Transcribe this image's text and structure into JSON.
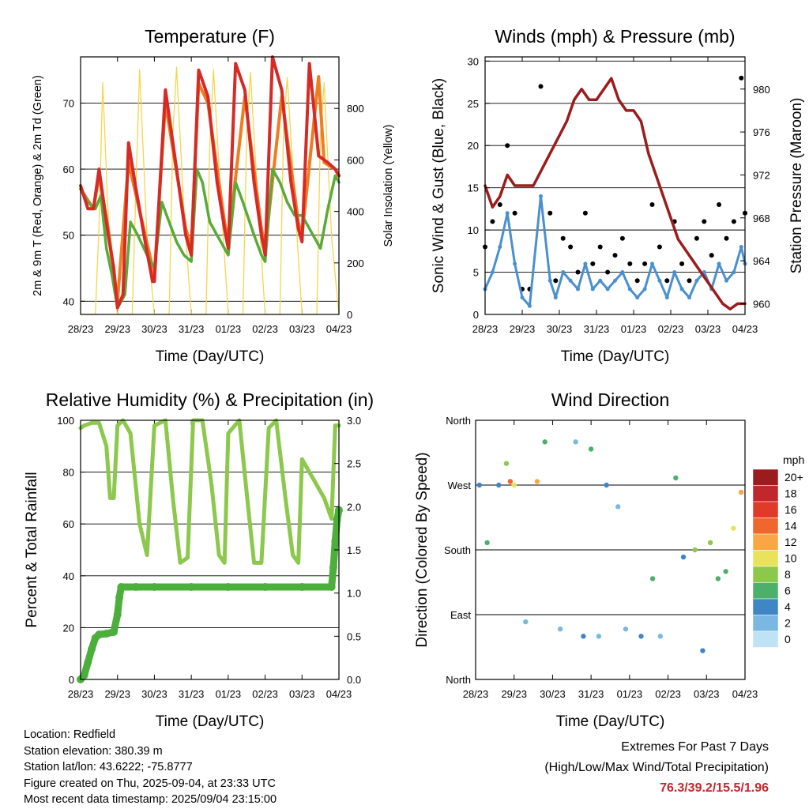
{
  "chart_data": [
    {
      "type": "line",
      "title": "Temperature (F)",
      "xlabel": "Time (Day/UTC)",
      "ylabel": "2m & 9m T (Red, Orange) & 2m Td (Green)",
      "ylabel_right": "Solar Insolation (Yellow)",
      "x_ticks": [
        "28/23",
        "29/23",
        "30/23",
        "31/23",
        "01/23",
        "02/23",
        "03/23",
        "04/23"
      ],
      "ylim": [
        38,
        77
      ],
      "y_ticks": [
        40,
        50,
        60,
        70
      ],
      "ylim_right": [
        0,
        1000
      ],
      "y_ticks_right": [
        0,
        200,
        400,
        600,
        800
      ],
      "grid": "horizontal",
      "colors": {
        "t2m": "#d62a26",
        "t9m": "#f07c1e",
        "td": "#5aaa3a",
        "solar": "#f5d54a"
      },
      "series": [
        {
          "key": "t2m",
          "x": [
            0,
            0.2,
            0.35,
            0.5,
            0.75,
            0.9,
            1.0,
            1.15,
            1.3,
            1.5,
            1.75,
            1.95,
            2.0,
            2.3,
            2.6,
            2.85,
            3.0,
            3.2,
            3.45,
            3.7,
            3.9,
            4.0,
            4.2,
            4.45,
            4.7,
            4.9,
            5.0,
            5.2,
            5.45,
            5.7,
            5.9,
            6.0,
            6.2,
            6.45,
            6.7,
            6.9,
            7.0
          ],
          "y": [
            57.5,
            54,
            54,
            60,
            50,
            45,
            39,
            41,
            64,
            57,
            49,
            43,
            43,
            72,
            60,
            50,
            47,
            75,
            71,
            58,
            51,
            48,
            76,
            72,
            58,
            50,
            47,
            77,
            72,
            58,
            51,
            49,
            76,
            62,
            61,
            60,
            59
          ]
        },
        {
          "key": "t9m",
          "x": [
            0,
            0.35,
            0.5,
            0.75,
            1.0,
            1.3,
            1.75,
            2.0,
            2.3,
            2.85,
            3.0,
            3.2,
            3.45,
            3.9,
            4.0,
            4.45,
            4.9,
            5.0,
            5.45,
            5.9,
            6.0,
            6.45,
            6.6,
            6.9,
            7.0
          ],
          "y": [
            57,
            54,
            59,
            51,
            40,
            61,
            50,
            44,
            70,
            51,
            48,
            73,
            70,
            52,
            49,
            71,
            51,
            48,
            71,
            52,
            50,
            74,
            61,
            60,
            59
          ]
        },
        {
          "key": "td",
          "x": [
            0,
            0.2,
            0.4,
            0.55,
            0.7,
            0.85,
            1.0,
            1.2,
            1.35,
            1.55,
            1.8,
            2.0,
            2.2,
            2.4,
            2.6,
            2.8,
            3.0,
            3.15,
            3.3,
            3.5,
            3.8,
            4.0,
            4.2,
            4.4,
            4.7,
            4.9,
            5.0,
            5.2,
            5.4,
            5.6,
            5.8,
            6.0,
            6.1,
            6.3,
            6.5,
            6.7,
            6.9,
            7.0
          ],
          "y": [
            57,
            55,
            54,
            56,
            48,
            44,
            39,
            41,
            52,
            50,
            47,
            45,
            55,
            52,
            49,
            47,
            46,
            60,
            58,
            52,
            49,
            47,
            58,
            55,
            50,
            47,
            46,
            60,
            58,
            55,
            53,
            53,
            52,
            50,
            48,
            54,
            59,
            58
          ]
        },
        {
          "key": "solar",
          "x": [
            0.0,
            0.05,
            0.1,
            0.2,
            0.4,
            0.5,
            0.6,
            0.8,
            1.0,
            1.05,
            1.1,
            1.2,
            1.4,
            1.5,
            1.6,
            1.8,
            2.0,
            2.05,
            2.1,
            2.2,
            2.4,
            2.5,
            2.6,
            2.8,
            3.0,
            3.05,
            3.1,
            3.2,
            3.4,
            3.5,
            3.6,
            3.8,
            4.0,
            4.05,
            4.1,
            4.2,
            4.4,
            4.5,
            4.6,
            4.8,
            5.0,
            5.05,
            5.1,
            5.2,
            5.4,
            5.5,
            5.6,
            5.8,
            6.0,
            6.05,
            6.1,
            6.2,
            6.4,
            6.5,
            6.6,
            6.8,
            7.0
          ],
          "y": [
            0,
            0,
            0,
            0,
            0,
            350,
            900,
            200,
            0,
            0,
            0,
            0,
            0,
            500,
            950,
            300,
            0,
            0,
            0,
            0,
            0,
            700,
            960,
            400,
            0,
            0,
            0,
            0,
            0,
            650,
            950,
            450,
            0,
            0,
            0,
            0,
            0,
            700,
            940,
            450,
            0,
            0,
            0,
            0,
            0,
            720,
            920,
            450,
            0,
            0,
            0,
            0,
            0,
            700,
            900,
            300,
            0
          ]
        }
      ]
    },
    {
      "type": "scatter",
      "title": "Winds (mph) & Pressure (mb)",
      "xlabel": "Time (Day/UTC)",
      "ylabel": "Sonic Wind & Gust (Blue, Black)",
      "ylabel_right": "Station Pressure (Maroon)",
      "x_ticks": [
        "28/23",
        "29/23",
        "30/23",
        "31/23",
        "01/23",
        "02/23",
        "03/23",
        "04/23"
      ],
      "ylim": [
        0,
        30.5
      ],
      "y_ticks": [
        0,
        5,
        10,
        15,
        20,
        25,
        30
      ],
      "ylim_right": [
        959,
        983
      ],
      "y_ticks_right": [
        960,
        964,
        968,
        972,
        976,
        980
      ],
      "grid": "horizontal",
      "colors": {
        "gust": "#000000",
        "wind": "#4a90cf",
        "pressure": "#9b1c1c"
      },
      "series": [
        {
          "key": "wind",
          "x": [
            0,
            0.2,
            0.4,
            0.6,
            0.8,
            1.0,
            1.2,
            1.5,
            1.75,
            1.9,
            2.1,
            2.3,
            2.5,
            2.7,
            2.9,
            3.1,
            3.3,
            3.5,
            3.7,
            3.9,
            4.1,
            4.3,
            4.5,
            4.7,
            4.9,
            5.1,
            5.3,
            5.5,
            5.7,
            5.9,
            6.1,
            6.3,
            6.5,
            6.7,
            6.9,
            7.0
          ],
          "y": [
            3,
            5,
            8,
            12,
            6,
            2,
            1,
            14,
            4,
            2,
            5,
            4,
            3,
            6,
            3,
            4,
            3,
            4,
            5,
            3,
            2,
            3,
            6,
            4,
            2,
            5,
            3,
            2,
            4,
            5,
            3,
            6,
            4,
            5,
            8,
            6
          ]
        },
        {
          "key": "gust",
          "x": [
            0,
            0.2,
            0.4,
            0.6,
            0.8,
            1.0,
            1.2,
            1.5,
            1.75,
            1.9,
            2.1,
            2.3,
            2.5,
            2.7,
            2.9,
            3.1,
            3.3,
            3.5,
            3.7,
            3.9,
            4.1,
            4.3,
            4.5,
            4.7,
            4.9,
            5.1,
            5.3,
            5.5,
            5.7,
            5.9,
            6.1,
            6.3,
            6.5,
            6.7,
            6.9,
            7.0
          ],
          "y": [
            8,
            11,
            13,
            20,
            12,
            3,
            3,
            27,
            12,
            4,
            9,
            8,
            5,
            12,
            6,
            8,
            5,
            7,
            9,
            6,
            4,
            6,
            13,
            8,
            4,
            11,
            6,
            4,
            9,
            11,
            7,
            13,
            9,
            11,
            28,
            12
          ]
        },
        {
          "key": "pressure",
          "x": [
            0,
            0.2,
            0.4,
            0.6,
            0.8,
            1.0,
            1.3,
            1.6,
            1.9,
            2.2,
            2.4,
            2.6,
            2.8,
            3.0,
            3.2,
            3.4,
            3.6,
            3.8,
            4.0,
            4.2,
            4.4,
            4.6,
            4.8,
            5.0,
            5.2,
            5.4,
            5.6,
            5.8,
            6.0,
            6.2,
            6.4,
            6.6,
            6.8,
            7.0
          ],
          "y": [
            971,
            969,
            970,
            972,
            971,
            971,
            971,
            973,
            975,
            977,
            979,
            980,
            979,
            979,
            980,
            981,
            979,
            978,
            978,
            977,
            974,
            972,
            970,
            968,
            966,
            965,
            964,
            963,
            962,
            961,
            960,
            959.5,
            960,
            960
          ]
        }
      ]
    },
    {
      "type": "line",
      "title": "Relative Humidity (%) & Precipitation (in)",
      "xlabel": "Time (Day/UTC)",
      "ylabel": "Percent & Total Rainfall",
      "x_ticks": [
        "28/23",
        "29/23",
        "30/23",
        "31/23",
        "01/23",
        "02/23",
        "03/23",
        "04/23"
      ],
      "ylim": [
        0,
        100
      ],
      "y_ticks": [
        0,
        20,
        40,
        60,
        80,
        100
      ],
      "ylim_right": [
        0,
        3.0
      ],
      "y_ticks_right": [
        "0.0",
        "0.5",
        "1.0",
        "1.5",
        "2.0",
        "2.5",
        "3.0"
      ],
      "grid": "horizontal",
      "colors": {
        "rh": "#8cc84b",
        "precip": "#4caf3c"
      },
      "series": [
        {
          "key": "rh",
          "x": [
            0,
            0.1,
            0.3,
            0.5,
            0.7,
            0.8,
            0.9,
            1.0,
            1.15,
            1.35,
            1.6,
            1.8,
            2.0,
            2.3,
            2.5,
            2.7,
            2.9,
            3.05,
            3.3,
            3.55,
            3.75,
            3.9,
            4.0,
            4.3,
            4.55,
            4.7,
            4.9,
            5.1,
            5.3,
            5.55,
            5.75,
            5.9,
            6.0,
            6.2,
            6.4,
            6.6,
            6.8,
            6.9,
            7.0
          ],
          "y": [
            97,
            98,
            99,
            99,
            90,
            70,
            70,
            98,
            100,
            95,
            60,
            48,
            98,
            100,
            70,
            45,
            47,
            100,
            100,
            75,
            48,
            45,
            95,
            100,
            65,
            45,
            45,
            97,
            100,
            70,
            48,
            45,
            85,
            80,
            75,
            70,
            62,
            98,
            98
          ]
        },
        {
          "key": "precip",
          "x": [
            0,
            0.1,
            0.2,
            0.3,
            0.4,
            0.5,
            0.7,
            0.9,
            1.0,
            1.05,
            1.1,
            1.5,
            2.0,
            3.0,
            4.0,
            5.0,
            6.0,
            6.8,
            6.85,
            6.9,
            6.95,
            7.0
          ],
          "y": [
            0,
            0.05,
            0.2,
            0.35,
            0.48,
            0.52,
            0.53,
            0.55,
            0.75,
            0.95,
            1.07,
            1.07,
            1.07,
            1.07,
            1.07,
            1.07,
            1.07,
            1.07,
            1.3,
            1.6,
            1.85,
            1.96
          ]
        }
      ]
    },
    {
      "type": "scatter",
      "title": "Wind Direction",
      "xlabel": "Time (Day/UTC)",
      "ylabel": "Direction (Colored By Speed)",
      "x_ticks": [
        "28/23",
        "29/23",
        "30/23",
        "31/23",
        "01/23",
        "02/23",
        "03/23",
        "04/23"
      ],
      "y_ticks": [
        "North",
        "East",
        "South",
        "West",
        "North"
      ],
      "ylim": [
        0,
        360
      ],
      "grid": "horizontal",
      "colorbar": {
        "title": "mph",
        "labels": [
          "20+",
          "18",
          "16",
          "14",
          "12",
          "10",
          "8",
          "6",
          "4",
          "2",
          "0"
        ],
        "colors": [
          "#9b1c1c",
          "#c0282c",
          "#de3b2a",
          "#f0672e",
          "#f9a646",
          "#e8e35a",
          "#8cc84b",
          "#4caf6a",
          "#3f86c4",
          "#7ab8e2",
          "#bfe3f5"
        ]
      },
      "series": [
        {
          "name": "direction",
          "x": [
            0.1,
            0.3,
            0.6,
            0.8,
            0.9,
            1.0,
            1.3,
            1.6,
            1.8,
            2.2,
            2.6,
            2.8,
            3.0,
            3.2,
            3.4,
            3.7,
            3.9,
            4.3,
            4.6,
            4.8,
            5.2,
            5.4,
            5.7,
            5.9,
            6.1,
            6.3,
            6.5,
            6.7,
            6.9
          ],
          "y": [
            270,
            190,
            270,
            300,
            275,
            270,
            80,
            275,
            330,
            70,
            330,
            60,
            320,
            60,
            270,
            240,
            70,
            60,
            140,
            60,
            280,
            170,
            180,
            40,
            190,
            140,
            150,
            210,
            260
          ],
          "speed": [
            3,
            5,
            3,
            8,
            14,
            10,
            1,
            12,
            6,
            2,
            1,
            4,
            5,
            2,
            3,
            2,
            1,
            3,
            5,
            2,
            6,
            4,
            7,
            3,
            8,
            5,
            6,
            10,
            12
          ]
        }
      ]
    }
  ],
  "info": {
    "location": "Location: Redfield",
    "elevation": "Station elevation: 380.39 m",
    "latlon": "Station lat/lon: 43.6222; -75.8777",
    "created": "Figure created on Thu, 2025-09-04, at 23:33 UTC",
    "recent": "Most recent data timestamp: 2025/09/04 23:15:00"
  },
  "extremes": {
    "title": "Extremes For Past 7 Days",
    "subtitle": "(High/Low/Max Wind/Total Precipitation)",
    "values": "76.3/39.2/15.5/1.96",
    "color": "#c0282c"
  }
}
